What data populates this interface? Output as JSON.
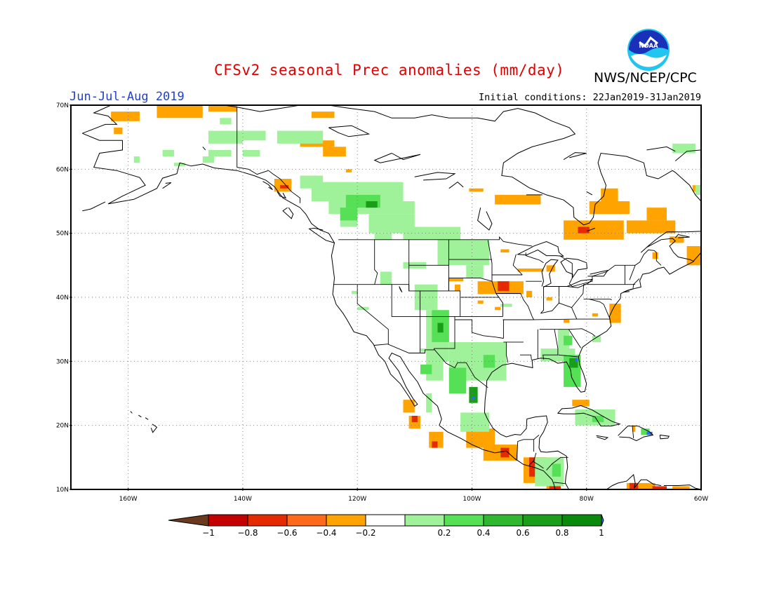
{
  "title": "CFSv2 seasonal Prec anomalies (mm/day)",
  "org": "NWS/NCEP/CPC",
  "season": "Jun-Jul-Aug 2019",
  "initial_conditions": "Initial conditions: 22Jan2019-31Jan2019",
  "logo": {
    "text": "NOAA",
    "icon": "noaa-logo-icon"
  },
  "lat_labels": [
    "70N",
    "60N",
    "50N",
    "40N",
    "30N",
    "20N",
    "10N"
  ],
  "lon_labels": [
    "160W",
    "140W",
    "120W",
    "100W",
    "80W",
    "60W"
  ],
  "colorbar": {
    "labels": [
      "-1",
      "-0.8",
      "-0.6",
      "-0.4",
      "-0.2",
      "0.2",
      "0.4",
      "0.6",
      "0.8",
      "1"
    ],
    "colors": [
      "#6b3a1e",
      "#c40000",
      "#e62a00",
      "#ff6a1a",
      "#ffa300",
      "#ffffff",
      "#9ff29a",
      "#55e055",
      "#2fb82f",
      "#1a9e1a",
      "#0a8a0a",
      "#2f6fe6"
    ]
  },
  "map": {
    "extent": {
      "lon_min": -170,
      "lon_max": -60,
      "lat_min": 10,
      "lat_max": 70
    },
    "colors": {
      "orange": "#ffa300",
      "red": "#e62a00",
      "darkred": "#c40000",
      "lightgreen": "#9ff29a",
      "green": "#55e055",
      "darkgreen": "#1a9e1a",
      "blue": "#2f6fe6"
    },
    "patches": [
      {
        "c": "orange",
        "lon": [
          -163,
          -158
        ],
        "lat": [
          67.5,
          69
        ]
      },
      {
        "c": "orange",
        "lon": [
          -155,
          -147
        ],
        "lat": [
          68,
          70
        ]
      },
      {
        "c": "orange",
        "lon": [
          -146,
          -141
        ],
        "lat": [
          69,
          70
        ]
      },
      {
        "c": "orange",
        "lon": [
          -162.5,
          -161
        ],
        "lat": [
          65.5,
          66.5
        ]
      },
      {
        "c": "orange",
        "lon": [
          -128,
          -124
        ],
        "lat": [
          68,
          69
        ]
      },
      {
        "c": "orange",
        "lon": [
          -130,
          -124
        ],
        "lat": [
          63.5,
          64.5
        ]
      },
      {
        "c": "orange",
        "lon": [
          -126,
          -122
        ],
        "lat": [
          62,
          63.5
        ]
      },
      {
        "c": "orange",
        "lon": [
          -122,
          -121
        ],
        "lat": [
          59.5,
          60
        ]
      },
      {
        "c": "orange",
        "lon": [
          -134.5,
          -131.5
        ],
        "lat": [
          56.5,
          58.5
        ]
      },
      {
        "c": "red",
        "lon": [
          -133.5,
          -132
        ],
        "lat": [
          57,
          57.5
        ]
      },
      {
        "c": "orange",
        "lon": [
          -100.5,
          -98
        ],
        "lat": [
          56.5,
          57
        ]
      },
      {
        "c": "orange",
        "lon": [
          -96,
          -88
        ],
        "lat": [
          54.5,
          56
        ]
      },
      {
        "c": "orange",
        "lon": [
          -84,
          -73.5
        ],
        "lat": [
          49,
          52
        ]
      },
      {
        "c": "orange",
        "lon": [
          -79.5,
          -72.5
        ],
        "lat": [
          53,
          55
        ]
      },
      {
        "c": "orange",
        "lon": [
          -77.5,
          -74.5
        ],
        "lat": [
          55,
          57
        ]
      },
      {
        "c": "red",
        "lon": [
          -81.5,
          -79.5
        ],
        "lat": [
          50,
          51
        ]
      },
      {
        "c": "orange",
        "lon": [
          -73,
          -64.5
        ],
        "lat": [
          50,
          52
        ]
      },
      {
        "c": "orange",
        "lon": [
          -69.5,
          -66
        ],
        "lat": [
          52,
          54
        ]
      },
      {
        "c": "orange",
        "lon": [
          -65.5,
          -63
        ],
        "lat": [
          48.5,
          49.5
        ]
      },
      {
        "c": "orange",
        "lon": [
          -62.5,
          -60
        ],
        "lat": [
          45,
          48
        ]
      },
      {
        "c": "orange",
        "lon": [
          -61.5,
          -60
        ],
        "lat": [
          56.5,
          57.5
        ]
      },
      {
        "c": "orange",
        "lon": [
          -68.5,
          -67.5
        ],
        "lat": [
          46,
          47
        ]
      },
      {
        "c": "orange",
        "lon": [
          -92,
          -87.5
        ],
        "lat": [
          44,
          44.5
        ]
      },
      {
        "c": "orange",
        "lon": [
          -87,
          -85.5
        ],
        "lat": [
          44,
          45
        ]
      },
      {
        "c": "orange",
        "lon": [
          -95,
          -93.5
        ],
        "lat": [
          47,
          47.5
        ]
      },
      {
        "c": "orange",
        "lon": [
          -104,
          -101.5
        ],
        "lat": [
          42.5,
          43
        ]
      },
      {
        "c": "orange",
        "lon": [
          -103,
          -102
        ],
        "lat": [
          41,
          42
        ]
      },
      {
        "c": "orange",
        "lon": [
          -99,
          -91
        ],
        "lat": [
          40.5,
          42.5
        ]
      },
      {
        "c": "red",
        "lon": [
          -95.5,
          -93.5
        ],
        "lat": [
          41,
          42.5
        ]
      },
      {
        "c": "orange",
        "lon": [
          -90.5,
          -89.5
        ],
        "lat": [
          40,
          41
        ]
      },
      {
        "c": "orange",
        "lon": [
          -87,
          -86
        ],
        "lat": [
          39.5,
          40
        ]
      },
      {
        "c": "orange",
        "lon": [
          -96,
          -95
        ],
        "lat": [
          38,
          38.5
        ]
      },
      {
        "c": "orange",
        "lon": [
          -99,
          -98
        ],
        "lat": [
          39,
          39.5
        ]
      },
      {
        "c": "orange",
        "lon": [
          -76,
          -74
        ],
        "lat": [
          36,
          39
        ]
      },
      {
        "c": "orange",
        "lon": [
          -79,
          -78
        ],
        "lat": [
          37,
          37.5
        ]
      },
      {
        "c": "orange",
        "lon": [
          -84,
          -83
        ],
        "lat": [
          36,
          36.5
        ]
      },
      {
        "c": "orange",
        "lon": [
          -112,
          -110
        ],
        "lat": [
          22,
          24
        ]
      },
      {
        "c": "orange",
        "lon": [
          -111,
          -109
        ],
        "lat": [
          19.5,
          21.5
        ]
      },
      {
        "c": "red",
        "lon": [
          -110.5,
          -109.5
        ],
        "lat": [
          20.5,
          21.5
        ]
      },
      {
        "c": "orange",
        "lon": [
          -107.5,
          -105
        ],
        "lat": [
          16.5,
          19
        ]
      },
      {
        "c": "red",
        "lon": [
          -107,
          -106
        ],
        "lat": [
          16.5,
          17.5
        ]
      },
      {
        "c": "orange",
        "lon": [
          -101,
          -96
        ],
        "lat": [
          16.5,
          19.5
        ]
      },
      {
        "c": "orange",
        "lon": [
          -98,
          -92
        ],
        "lat": [
          14.5,
          17
        ]
      },
      {
        "c": "red",
        "lon": [
          -95,
          -93.5
        ],
        "lat": [
          15,
          16.5
        ]
      },
      {
        "c": "orange",
        "lon": [
          -91,
          -86
        ],
        "lat": [
          11,
          15
        ]
      },
      {
        "c": "red",
        "lon": [
          -90,
          -87
        ],
        "lat": [
          12,
          15
        ]
      },
      {
        "c": "darkred",
        "lon": [
          -89,
          -88
        ],
        "lat": [
          13.5,
          14.5
        ]
      },
      {
        "c": "orange",
        "lon": [
          -87,
          -84.5
        ],
        "lat": [
          10,
          12
        ]
      },
      {
        "c": "red",
        "lon": [
          -86.5,
          -84.5
        ],
        "lat": [
          10,
          11
        ]
      },
      {
        "c": "orange",
        "lon": [
          -73,
          -68
        ],
        "lat": [
          10,
          11
        ]
      },
      {
        "c": "red",
        "lon": [
          -72.5,
          -71
        ],
        "lat": [
          10,
          11
        ]
      },
      {
        "c": "red",
        "lon": [
          -68.5,
          -66
        ],
        "lat": [
          10,
          10.5
        ]
      },
      {
        "c": "orange",
        "lon": [
          -65,
          -62
        ],
        "lat": [
          10,
          10.5
        ]
      },
      {
        "c": "orange",
        "lon": [
          -82.5,
          -79.5
        ],
        "lat": [
          23,
          24
        ]
      },
      {
        "c": "orange",
        "lon": [
          -72,
          -71.5
        ],
        "lat": [
          19,
          20
        ]
      },
      {
        "c": "lightgreen",
        "lon": [
          -152,
          -150
        ],
        "lat": [
          60.5,
          61
        ]
      },
      {
        "c": "lightgreen",
        "lon": [
          -147,
          -145
        ],
        "lat": [
          61,
          62
        ]
      },
      {
        "c": "lightgreen",
        "lon": [
          -146,
          -142
        ],
        "lat": [
          62,
          63
        ]
      },
      {
        "c": "lightgreen",
        "lon": [
          -140,
          -137
        ],
        "lat": [
          62,
          63
        ]
      },
      {
        "c": "lightgreen",
        "lon": [
          -134,
          -126
        ],
        "lat": [
          64,
          66
        ]
      },
      {
        "c": "lightgreen",
        "lon": [
          -146,
          -140
        ],
        "lat": [
          64,
          66
        ]
      },
      {
        "c": "lightgreen",
        "lon": [
          -140,
          -136
        ],
        "lat": [
          64.5,
          66
        ]
      },
      {
        "c": "lightgreen",
        "lon": [
          -154,
          -152
        ],
        "lat": [
          62,
          63
        ]
      },
      {
        "c": "lightgreen",
        "lon": [
          -159,
          -158
        ],
        "lat": [
          61,
          62
        ]
      },
      {
        "c": "lightgreen",
        "lon": [
          -144,
          -142
        ],
        "lat": [
          67,
          68
        ]
      },
      {
        "c": "lightgreen",
        "lon": [
          -130,
          -126
        ],
        "lat": [
          57,
          59
        ]
      },
      {
        "c": "lightgreen",
        "lon": [
          -128,
          -112
        ],
        "lat": [
          55,
          58
        ]
      },
      {
        "c": "lightgreen",
        "lon": [
          -125,
          -110
        ],
        "lat": [
          53,
          55
        ]
      },
      {
        "c": "lightgreen",
        "lon": [
          -118,
          -110
        ],
        "lat": [
          50,
          53
        ]
      },
      {
        "c": "lightgreen",
        "lon": [
          -112,
          -102
        ],
        "lat": [
          49,
          51
        ]
      },
      {
        "c": "lightgreen",
        "lon": [
          -106,
          -97
        ],
        "lat": [
          45,
          49
        ]
      },
      {
        "c": "lightgreen",
        "lon": [
          -101,
          -98
        ],
        "lat": [
          43,
          45
        ]
      },
      {
        "c": "lightgreen",
        "lon": [
          -123,
          -120
        ],
        "lat": [
          51,
          55
        ]
      },
      {
        "c": "green",
        "lon": [
          -123,
          -120
        ],
        "lat": [
          52,
          54
        ]
      },
      {
        "c": "green",
        "lon": [
          -122,
          -116
        ],
        "lat": [
          54,
          56
        ]
      },
      {
        "c": "darkgreen",
        "lon": [
          -118.5,
          -116.5
        ],
        "lat": [
          54,
          55
        ]
      },
      {
        "c": "lightgreen",
        "lon": [
          -117,
          -114
        ],
        "lat": [
          49,
          50
        ]
      },
      {
        "c": "lightgreen",
        "lon": [
          -116,
          -114
        ],
        "lat": [
          42,
          44
        ]
      },
      {
        "c": "lightgreen",
        "lon": [
          -112,
          -108
        ],
        "lat": [
          44.5,
          45.5
        ]
      },
      {
        "c": "lightgreen",
        "lon": [
          -110,
          -106
        ],
        "lat": [
          38,
          42
        ]
      },
      {
        "c": "lightgreen",
        "lon": [
          -108,
          -104
        ],
        "lat": [
          30,
          38
        ]
      },
      {
        "c": "green",
        "lon": [
          -107,
          -104
        ],
        "lat": [
          33,
          38
        ]
      },
      {
        "c": "darkgreen",
        "lon": [
          -106,
          -105
        ],
        "lat": [
          34.5,
          36
        ]
      },
      {
        "c": "lightgreen",
        "lon": [
          -104,
          -94
        ],
        "lat": [
          27,
          33
        ]
      },
      {
        "c": "green",
        "lon": [
          -104,
          -101
        ],
        "lat": [
          25,
          29
        ]
      },
      {
        "c": "darkgreen",
        "lon": [
          -100.5,
          -99
        ],
        "lat": [
          23.5,
          26
        ]
      },
      {
        "c": "blue",
        "lon": [
          -100,
          -99.5
        ],
        "lat": [
          24,
          24.5
        ]
      },
      {
        "c": "green",
        "lon": [
          -98,
          -96
        ],
        "lat": [
          29,
          31
        ]
      },
      {
        "c": "lightgreen",
        "lon": [
          -102,
          -97
        ],
        "lat": [
          19,
          22
        ]
      },
      {
        "c": "lightgreen",
        "lon": [
          -108,
          -105
        ],
        "lat": [
          27,
          30
        ]
      },
      {
        "c": "green",
        "lon": [
          -109,
          -107
        ],
        "lat": [
          28,
          29.5
        ]
      },
      {
        "c": "lightgreen",
        "lon": [
          -108,
          -107
        ],
        "lat": [
          22,
          25
        ]
      },
      {
        "c": "lightgreen",
        "lon": [
          -120,
          -118
        ],
        "lat": [
          38,
          38.5
        ]
      },
      {
        "c": "lightgreen",
        "lon": [
          -109,
          -108
        ],
        "lat": [
          31.5,
          32
        ]
      },
      {
        "c": "lightgreen",
        "lon": [
          -96,
          -95
        ],
        "lat": [
          28,
          28.5
        ]
      },
      {
        "c": "lightgreen",
        "lon": [
          -88,
          -82
        ],
        "lat": [
          30,
          32
        ]
      },
      {
        "c": "green",
        "lon": [
          -84,
          -81
        ],
        "lat": [
          26,
          31
        ]
      },
      {
        "c": "darkgreen",
        "lon": [
          -83,
          -81.5
        ],
        "lat": [
          29,
          30.5
        ]
      },
      {
        "c": "blue",
        "lon": [
          -82,
          -81.5
        ],
        "lat": [
          30,
          30.5
        ]
      },
      {
        "c": "lightgreen",
        "lon": [
          -85,
          -83
        ],
        "lat": [
          31.5,
          35
        ]
      },
      {
        "c": "green",
        "lon": [
          -84,
          -82.5
        ],
        "lat": [
          32.5,
          34
        ]
      },
      {
        "c": "lightgreen",
        "lon": [
          -79,
          -77.5
        ],
        "lat": [
          33,
          34
        ]
      },
      {
        "c": "lightgreen",
        "lon": [
          -89,
          -84
        ],
        "lat": [
          10.5,
          15
        ]
      },
      {
        "c": "green",
        "lon": [
          -86,
          -84.5
        ],
        "lat": [
          12,
          14
        ]
      },
      {
        "c": "lightgreen",
        "lon": [
          -82,
          -75
        ],
        "lat": [
          20,
          22.5
        ]
      },
      {
        "c": "green",
        "lon": [
          -79,
          -77
        ],
        "lat": [
          20.5,
          21.5
        ]
      },
      {
        "c": "green",
        "lon": [
          -70.5,
          -69
        ],
        "lat": [
          18.5,
          19.5
        ]
      },
      {
        "c": "blue",
        "lon": [
          -69.5,
          -68.5
        ],
        "lat": [
          18.5,
          19
        ]
      },
      {
        "c": "lightgreen",
        "lon": [
          -65,
          -61
        ],
        "lat": [
          62.5,
          64
        ]
      },
      {
        "c": "lightgreen",
        "lon": [
          -61,
          -60
        ],
        "lat": [
          56,
          57.5
        ]
      },
      {
        "c": "lightgreen",
        "lon": [
          -95,
          -93
        ],
        "lat": [
          38.5,
          39
        ]
      },
      {
        "c": "lightgreen",
        "lon": [
          -121,
          -120
        ],
        "lat": [
          40.5,
          41
        ]
      }
    ]
  }
}
